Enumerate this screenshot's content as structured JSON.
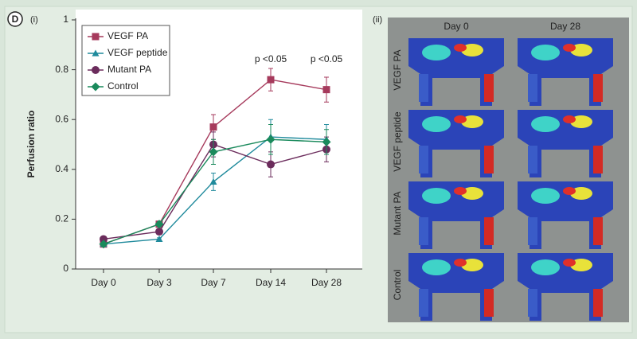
{
  "panel_label": "D",
  "chart_panel_label": "(i)",
  "image_panel_label": "(ii)",
  "chart_data": {
    "type": "line",
    "y_label": "Perfusion ratio",
    "categories": [
      "Day 0",
      "Day 3",
      "Day 7",
      "Day 14",
      "Day 28"
    ],
    "ylim": [
      0,
      1
    ],
    "yticks": [
      0,
      0.2,
      0.4,
      0.6,
      0.8,
      1
    ],
    "legend": "upper-left",
    "annotations": [
      {
        "text": "p <0.05",
        "category": 3
      },
      {
        "text": "p <0.05",
        "category": 4
      }
    ],
    "series": [
      {
        "name": "VEGF PA",
        "color": "#a63a5c",
        "marker": "square",
        "values": [
          0.1,
          0.18,
          0.57,
          0.76,
          0.72
        ],
        "errors": [
          0.005,
          0.01,
          0.05,
          0.045,
          0.05
        ]
      },
      {
        "name": "VEGF peptide",
        "color": "#1f8a9c",
        "marker": "triangle",
        "values": [
          0.1,
          0.12,
          0.35,
          0.53,
          0.52
        ],
        "errors": [
          0.005,
          0.005,
          0.035,
          0.07,
          0.06
        ]
      },
      {
        "name": "Mutant PA",
        "color": "#6b2c5c",
        "marker": "circle",
        "values": [
          0.12,
          0.15,
          0.5,
          0.42,
          0.48
        ],
        "errors": [
          0.005,
          0.01,
          0.05,
          0.05,
          0.05
        ]
      },
      {
        "name": "Control",
        "color": "#1a8a5c",
        "marker": "diamond",
        "values": [
          0.1,
          0.18,
          0.47,
          0.52,
          0.51
        ],
        "errors": [
          0.005,
          0.01,
          0.05,
          0.06,
          0.05
        ]
      }
    ]
  },
  "image_panel": {
    "columns": [
      "Day 0",
      "Day 28"
    ],
    "rows": [
      "VEGF PA",
      "VEGF peptide",
      "Mutant PA",
      "Control"
    ]
  }
}
